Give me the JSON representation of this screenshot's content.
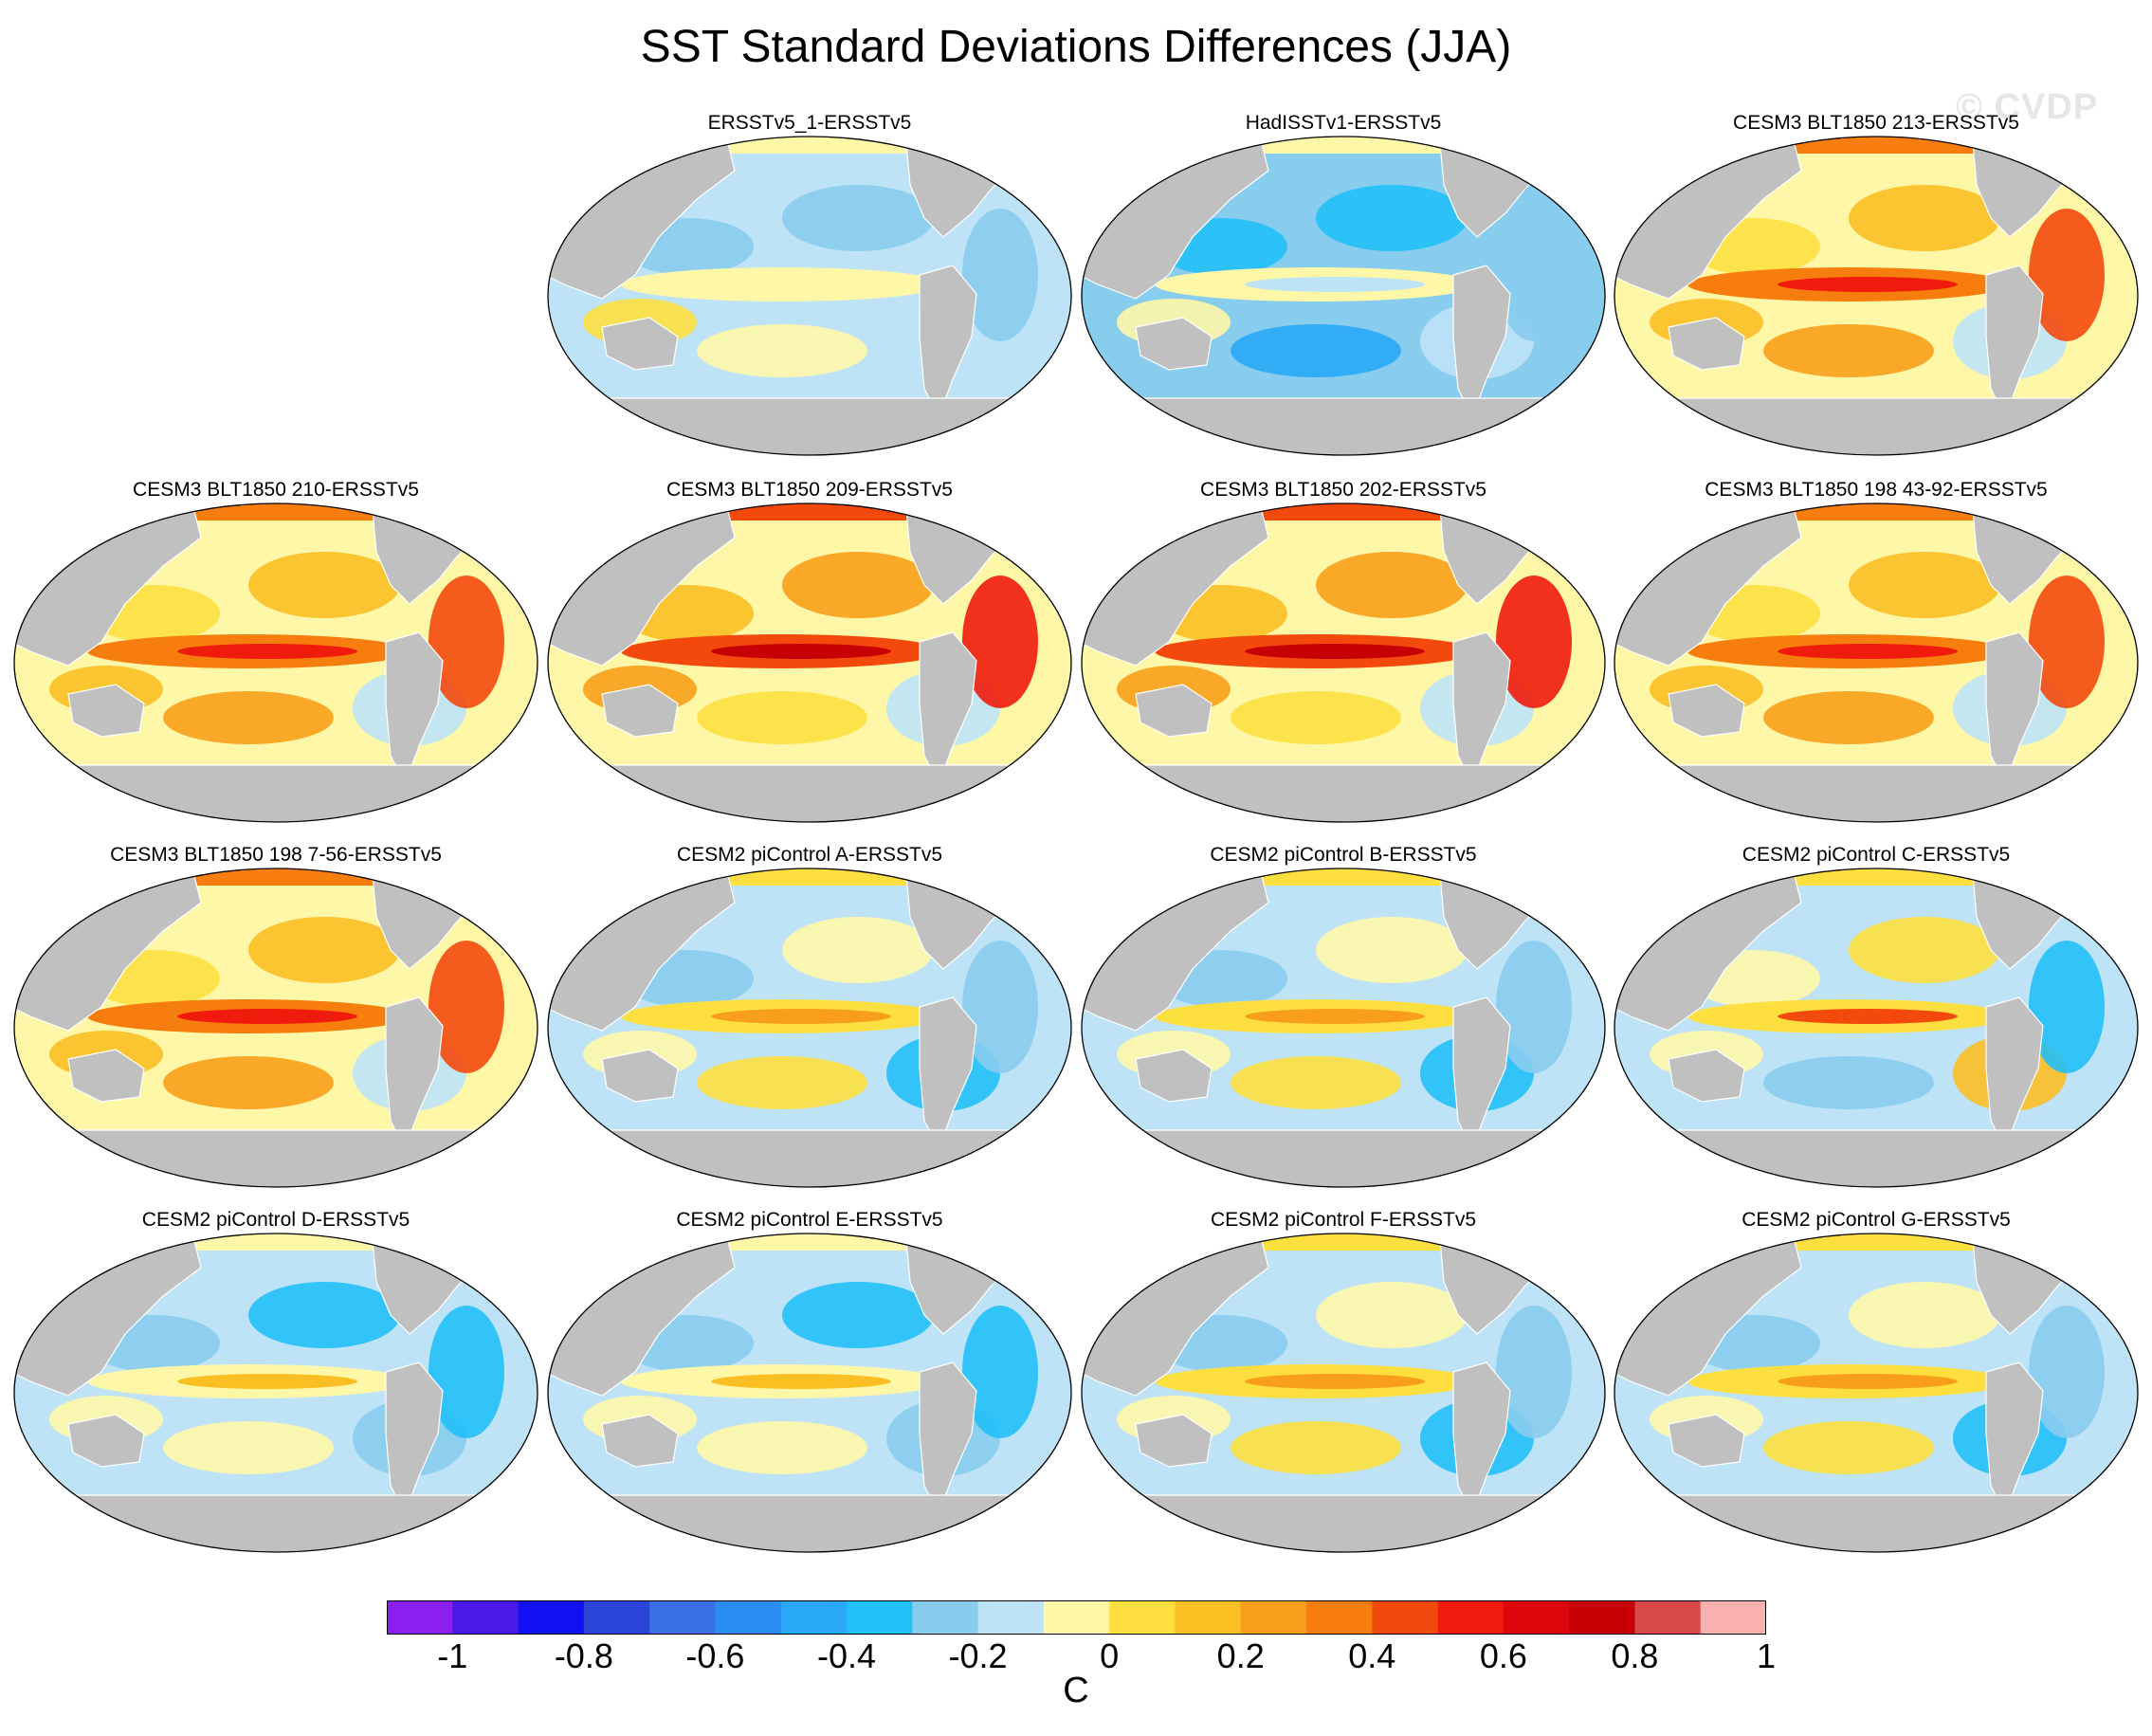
{
  "title": "SST Standard Deviations Differences (JJA)",
  "watermark": "© CVDP",
  "panels": [
    {
      "label": "ERSSTv5_1-ERSSTv5",
      "pattern": "weak-negative"
    },
    {
      "label": "HadISSTv1-ERSSTv5",
      "pattern": "negative"
    },
    {
      "label": "CESM3 BLT1850 213-ERSSTv5",
      "pattern": "strong-positive"
    },
    {
      "label": "CESM3 BLT1850 210-ERSSTv5",
      "pattern": "strong-positive"
    },
    {
      "label": "CESM3 BLT1850 209-ERSSTv5",
      "pattern": "very-strong-positive"
    },
    {
      "label": "CESM3 BLT1850 202-ERSSTv5",
      "pattern": "very-strong-positive"
    },
    {
      "label": "CESM3 BLT1850 198 43-92-ERSSTv5",
      "pattern": "strong-positive"
    },
    {
      "label": "CESM3 BLT1850 198 7-56-ERSSTv5",
      "pattern": "strong-positive"
    },
    {
      "label": "CESM2 piControl A-ERSSTv5",
      "pattern": "mixed"
    },
    {
      "label": "CESM2 piControl B-ERSSTv5",
      "pattern": "mixed"
    },
    {
      "label": "CESM2 piControl C-ERSSTv5",
      "pattern": "mixed-positive"
    },
    {
      "label": "CESM2 piControl D-ERSSTv5",
      "pattern": "mixed-negative"
    },
    {
      "label": "CESM2 piControl E-ERSSTv5",
      "pattern": "mixed-negative"
    },
    {
      "label": "CESM2 piControl F-ERSSTv5",
      "pattern": "mixed"
    },
    {
      "label": "CESM2 piControl G-ERSSTv5",
      "pattern": "mixed"
    }
  ],
  "colorbar": {
    "units": "C",
    "colors": [
      "#8b1ff0",
      "#4a19e8",
      "#1010f2",
      "#2a45d8",
      "#3a6fe6",
      "#2a8cf5",
      "#28a8f5",
      "#22c0f7",
      "#88ccee",
      "#bee3f7",
      "#fff7a8",
      "#fde040",
      "#fbbe23",
      "#f99e1a",
      "#f77d0e",
      "#f4490c",
      "#ef1b0c",
      "#dd050a",
      "#c70005",
      "#d84848",
      "#f9b0b0"
    ],
    "tick_labels": [
      "-1",
      "-0.8",
      "-0.6",
      "-0.4",
      "-0.2",
      "0",
      "0.2",
      "0.4",
      "0.6",
      "0.8",
      "1"
    ]
  },
  "colors": {
    "land": "#c0c0c0",
    "background": "#ffffff"
  }
}
